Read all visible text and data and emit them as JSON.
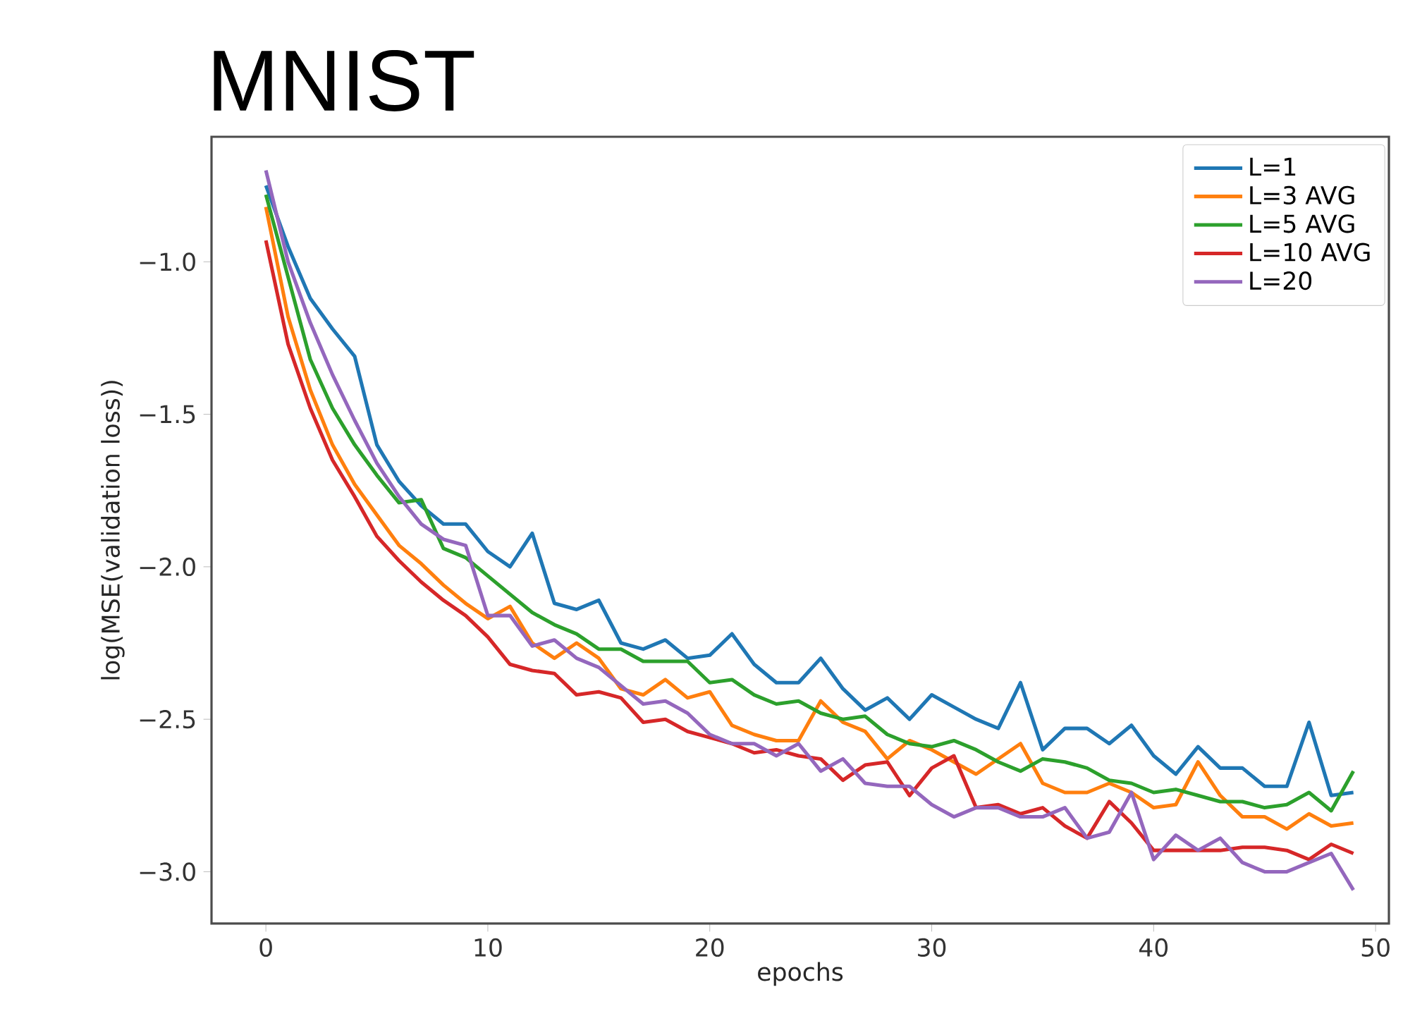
{
  "chart_data": {
    "type": "line",
    "title": "MNIST",
    "xlabel": "epochs",
    "ylabel": "log(MSE(validation loss))",
    "x": [
      0,
      1,
      2,
      3,
      4,
      5,
      6,
      7,
      8,
      9,
      10,
      11,
      12,
      13,
      14,
      15,
      16,
      17,
      18,
      19,
      20,
      21,
      22,
      23,
      24,
      25,
      26,
      27,
      28,
      29,
      30,
      31,
      32,
      33,
      34,
      35,
      36,
      37,
      38,
      39,
      40,
      41,
      42,
      43,
      44,
      45,
      46,
      47,
      48,
      49
    ],
    "xlim": [
      -2.45,
      50.6
    ],
    "xticks": [
      0,
      10,
      20,
      30,
      40,
      50
    ],
    "ylim": [
      -3.17,
      -0.59
    ],
    "yticks": [
      {
        "value": -3.0,
        "label": "−3.0"
      },
      {
        "value": -2.5,
        "label": "−2.5"
      },
      {
        "value": -2.0,
        "label": "−2.0"
      },
      {
        "value": -1.5,
        "label": "−1.5"
      },
      {
        "value": -1.0,
        "label": "−1.0"
      }
    ],
    "legend": "top right",
    "grid": false,
    "marker": "none",
    "line_style": "solid",
    "series": [
      {
        "name": "L=1",
        "color": "#1f77b4",
        "values": [
          -0.75,
          -0.95,
          -1.12,
          -1.22,
          -1.31,
          -1.6,
          -1.72,
          -1.8,
          -1.86,
          -1.86,
          -1.95,
          -2.0,
          -1.89,
          -2.12,
          -2.14,
          -2.11,
          -2.25,
          -2.27,
          -2.24,
          -2.3,
          -2.29,
          -2.22,
          -2.32,
          -2.38,
          -2.38,
          -2.3,
          -2.4,
          -2.47,
          -2.43,
          -2.5,
          -2.42,
          -2.46,
          -2.5,
          -2.53,
          -2.38,
          -2.6,
          -2.53,
          -2.53,
          -2.58,
          -2.52,
          -2.62,
          -2.68,
          -2.59,
          -2.66,
          -2.66,
          -2.72,
          -2.72,
          -2.51,
          -2.75,
          -2.74
        ]
      },
      {
        "name": "L=3 AVG",
        "color": "#ff7f0e",
        "values": [
          -0.82,
          -1.18,
          -1.42,
          -1.6,
          -1.73,
          -1.83,
          -1.93,
          -1.99,
          -2.06,
          -2.12,
          -2.17,
          -2.13,
          -2.25,
          -2.3,
          -2.25,
          -2.3,
          -2.4,
          -2.42,
          -2.37,
          -2.43,
          -2.41,
          -2.52,
          -2.55,
          -2.57,
          -2.57,
          -2.44,
          -2.51,
          -2.54,
          -2.63,
          -2.57,
          -2.6,
          -2.64,
          -2.68,
          -2.63,
          -2.58,
          -2.71,
          -2.74,
          -2.74,
          -2.71,
          -2.74,
          -2.79,
          -2.78,
          -2.64,
          -2.75,
          -2.82,
          -2.82,
          -2.86,
          -2.81,
          -2.85,
          -2.84
        ]
      },
      {
        "name": "L=5 AVG",
        "color": "#2ca02c",
        "values": [
          -0.78,
          -1.05,
          -1.32,
          -1.48,
          -1.6,
          -1.7,
          -1.79,
          -1.78,
          -1.94,
          -1.97,
          -2.03,
          -2.09,
          -2.15,
          -2.19,
          -2.22,
          -2.27,
          -2.27,
          -2.31,
          -2.31,
          -2.31,
          -2.38,
          -2.37,
          -2.42,
          -2.45,
          -2.44,
          -2.48,
          -2.5,
          -2.49,
          -2.55,
          -2.58,
          -2.59,
          -2.57,
          -2.6,
          -2.64,
          -2.67,
          -2.63,
          -2.64,
          -2.66,
          -2.7,
          -2.71,
          -2.74,
          -2.73,
          -2.75,
          -2.77,
          -2.77,
          -2.79,
          -2.78,
          -2.74,
          -2.8,
          -2.67
        ]
      },
      {
        "name": "L=10 AVG",
        "color": "#d62728",
        "values": [
          -0.93,
          -1.27,
          -1.48,
          -1.65,
          -1.77,
          -1.9,
          -1.98,
          -2.05,
          -2.11,
          -2.16,
          -2.23,
          -2.32,
          -2.34,
          -2.35,
          -2.42,
          -2.41,
          -2.43,
          -2.51,
          -2.5,
          -2.54,
          -2.56,
          -2.58,
          -2.61,
          -2.6,
          -2.62,
          -2.63,
          -2.7,
          -2.65,
          -2.64,
          -2.75,
          -2.66,
          -2.62,
          -2.79,
          -2.78,
          -2.81,
          -2.79,
          -2.85,
          -2.89,
          -2.77,
          -2.84,
          -2.93,
          -2.93,
          -2.93,
          -2.93,
          -2.92,
          -2.92,
          -2.93,
          -2.96,
          -2.91,
          -2.94
        ]
      },
      {
        "name": "L=20",
        "color": "#9467bd",
        "values": [
          -0.7,
          -1.0,
          -1.2,
          -1.37,
          -1.52,
          -1.66,
          -1.77,
          -1.86,
          -1.91,
          -1.93,
          -2.16,
          -2.16,
          -2.26,
          -2.24,
          -2.3,
          -2.33,
          -2.39,
          -2.45,
          -2.44,
          -2.48,
          -2.55,
          -2.58,
          -2.58,
          -2.62,
          -2.58,
          -2.67,
          -2.63,
          -2.71,
          -2.72,
          -2.72,
          -2.78,
          -2.82,
          -2.79,
          -2.79,
          -2.82,
          -2.82,
          -2.79,
          -2.89,
          -2.87,
          -2.74,
          -2.96,
          -2.88,
          -2.93,
          -2.89,
          -2.97,
          -3.0,
          -3.0,
          -2.97,
          -2.94,
          -3.06
        ]
      }
    ]
  }
}
